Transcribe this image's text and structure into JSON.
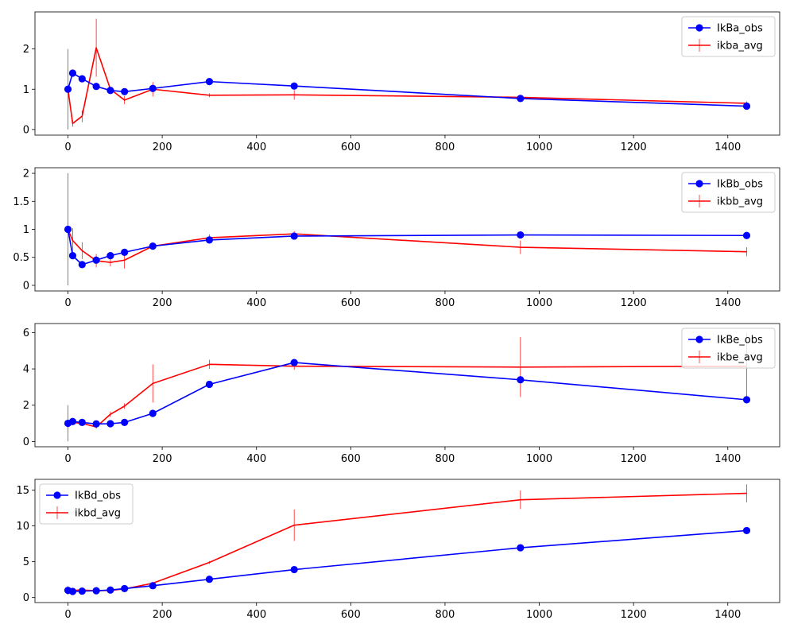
{
  "chart_data": [
    {
      "type": "line",
      "x": [
        0,
        10,
        30,
        60,
        90,
        120,
        180,
        300,
        480,
        960,
        1440
      ],
      "xlim": [
        -70,
        1510
      ],
      "xticks": [
        0,
        200,
        400,
        600,
        800,
        1000,
        1200,
        1400
      ],
      "ylim": [
        -0.14,
        2.92
      ],
      "yticks": [
        0,
        1,
        2
      ],
      "legend_position": "upper right",
      "series": [
        {
          "name": "IkBa_obs",
          "color": "#0000ff",
          "marker": "circle",
          "values": [
            1.0,
            1.4,
            1.26,
            1.07,
            0.97,
            0.94,
            1.02,
            1.19,
            1.08,
            0.77,
            0.58
          ]
        },
        {
          "name": "ikba_avg",
          "color": "#ff0000",
          "marker": "errorbar",
          "values": [
            1.0,
            0.15,
            0.33,
            2.03,
            1.0,
            0.73,
            1.0,
            0.85,
            0.86,
            0.8,
            0.65
          ],
          "errors": [
            1.0,
            0.08,
            0.15,
            0.72,
            0.06,
            0.1,
            0.18,
            0.05,
            0.12,
            0.05,
            0.05
          ]
        }
      ]
    },
    {
      "type": "line",
      "x": [
        0,
        10,
        30,
        60,
        90,
        120,
        180,
        300,
        480,
        960,
        1440
      ],
      "xlim": [
        -70,
        1510
      ],
      "xticks": [
        0,
        200,
        400,
        600,
        800,
        1000,
        1200,
        1400
      ],
      "ylim": [
        -0.1,
        2.1
      ],
      "yticks": [
        0.0,
        0.5,
        1.0,
        1.5,
        2.0
      ],
      "legend_position": "upper right",
      "series": [
        {
          "name": "IkBb_obs",
          "color": "#0000ff",
          "marker": "circle",
          "values": [
            1.0,
            0.53,
            0.37,
            0.45,
            0.53,
            0.59,
            0.7,
            0.81,
            0.88,
            0.9,
            0.89
          ]
        },
        {
          "name": "ikbb_avg",
          "color": "#ff0000",
          "marker": "errorbar",
          "values": [
            1.0,
            0.8,
            0.62,
            0.44,
            0.41,
            0.45,
            0.7,
            0.85,
            0.92,
            0.68,
            0.6
          ],
          "errors": [
            1.0,
            0.22,
            0.15,
            0.12,
            0.07,
            0.15,
            0.05,
            0.06,
            0.05,
            0.12,
            0.08
          ]
        }
      ]
    },
    {
      "type": "line",
      "x": [
        0,
        10,
        30,
        60,
        90,
        120,
        180,
        300,
        480,
        960,
        1440
      ],
      "xlim": [
        -70,
        1510
      ],
      "xticks": [
        0,
        200,
        400,
        600,
        800,
        1000,
        1200,
        1400
      ],
      "ylim": [
        -0.29,
        6.5
      ],
      "yticks": [
        0,
        2,
        4,
        6
      ],
      "legend_position": "upper right",
      "series": [
        {
          "name": "IkBe_obs",
          "color": "#0000ff",
          "marker": "circle",
          "values": [
            1.0,
            1.1,
            1.05,
            0.97,
            0.98,
            1.05,
            1.55,
            3.15,
            4.35,
            3.4,
            2.3
          ]
        },
        {
          "name": "ikbe_avg",
          "color": "#ff0000",
          "marker": "errorbar",
          "values": [
            1.0,
            1.05,
            1.0,
            0.8,
            1.5,
            1.95,
            3.2,
            4.25,
            4.15,
            4.1,
            4.15
          ],
          "errors": [
            1.0,
            0.1,
            0.1,
            0.1,
            0.15,
            0.15,
            1.05,
            0.25,
            0.2,
            1.65,
            1.85
          ]
        }
      ]
    },
    {
      "type": "line",
      "x": [
        0,
        10,
        30,
        60,
        90,
        120,
        180,
        300,
        480,
        960,
        1440
      ],
      "xlim": [
        -70,
        1510
      ],
      "xticks": [
        0,
        200,
        400,
        600,
        800,
        1000,
        1200,
        1400
      ],
      "ylim": [
        -0.7,
        16.5
      ],
      "yticks": [
        0,
        5,
        10,
        15
      ],
      "legend_position": "upper left",
      "series": [
        {
          "name": "IkBd_obs",
          "color": "#0000ff",
          "marker": "circle",
          "values": [
            1.0,
            0.85,
            0.9,
            0.95,
            1.05,
            1.25,
            1.65,
            2.55,
            3.9,
            6.95,
            9.35
          ]
        },
        {
          "name": "ikbd_avg",
          "color": "#ff0000",
          "marker": "errorbar",
          "values": [
            1.0,
            1.0,
            1.05,
            0.95,
            1.0,
            1.2,
            2.0,
            4.9,
            10.1,
            13.65,
            14.55
          ],
          "errors": [
            0.6,
            0.15,
            0.3,
            0.2,
            0.15,
            0.2,
            0.2,
            0.2,
            2.2,
            1.3,
            1.25
          ]
        }
      ]
    }
  ]
}
